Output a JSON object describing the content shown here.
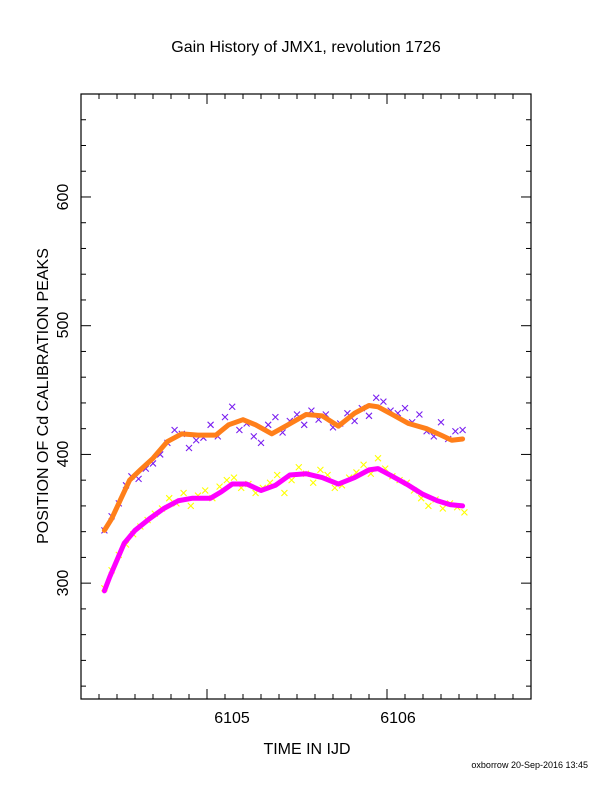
{
  "chart_data": {
    "type": "scatter",
    "title": "Gain History of JMX1, revolution 1726",
    "xlabel": "TIME IN IJD",
    "ylabel": "POSITION OF Cd CALIBRATION PEAKS",
    "footer": "oxborrow 20-Sep-2016 13:45",
    "xlim": [
      6104.3,
      6106.8
    ],
    "ylim": [
      210,
      680
    ],
    "x_major_ticks": [
      6105,
      6106
    ],
    "y_major_ticks": [
      300,
      400,
      500,
      600
    ],
    "x_tick_labels": [
      "6105",
      "6106"
    ],
    "y_tick_labels": [
      "300",
      "400",
      "500",
      "600"
    ],
    "grid": false,
    "colors": {
      "upper_points": "#7a1ff0",
      "upper_fit": "#ff7f1a",
      "lower_points": "#ffff00",
      "lower_fit": "#ff00ff"
    },
    "series": [
      {
        "marker": "x",
        "color": "#7a1ff0",
        "x": [
          6104.43,
          6104.47,
          6104.51,
          6104.55,
          6104.58,
          6104.62,
          6104.66,
          6104.7,
          6104.74,
          6104.78,
          6104.82,
          6104.86,
          6104.9,
          6104.94,
          6104.98,
          6105.02,
          6105.06,
          6105.1,
          6105.14,
          6105.18,
          6105.22,
          6105.26,
          6105.3,
          6105.34,
          6105.38,
          6105.42,
          6105.46,
          6105.5,
          6105.54,
          6105.58,
          6105.62,
          6105.66,
          6105.7,
          6105.74,
          6105.78,
          6105.82,
          6105.86,
          6105.9,
          6105.94,
          6105.98,
          6106.02,
          6106.06,
          6106.1,
          6106.14,
          6106.18,
          6106.22,
          6106.26,
          6106.3,
          6106.34,
          6106.38,
          6106.42
        ],
        "y": [
          341,
          352,
          362,
          376,
          383,
          381,
          389,
          393,
          400,
          409,
          419,
          416,
          405,
          411,
          413,
          423,
          414,
          429,
          437,
          419,
          424,
          414,
          409,
          423,
          429,
          417,
          426,
          431,
          423,
          434,
          427,
          431,
          421,
          424,
          432,
          426,
          436,
          430,
          444,
          441,
          434,
          432,
          436,
          425,
          431,
          418,
          414,
          425,
          412,
          418,
          419
        ]
      },
      {
        "marker": "line",
        "color": "#ff7f1a",
        "x": [
          6104.43,
          6104.47,
          6104.52,
          6104.57,
          6104.63,
          6104.7,
          6104.78,
          6104.86,
          6104.95,
          6105.05,
          6105.12,
          6105.2,
          6105.27,
          6105.36,
          6105.45,
          6105.55,
          6105.64,
          6105.73,
          6105.82,
          6105.9,
          6105.95,
          6106.03,
          6106.12,
          6106.22,
          6106.3,
          6106.36,
          6106.42
        ],
        "y": [
          341,
          350,
          365,
          380,
          388,
          397,
          410,
          416,
          415,
          415,
          423,
          427,
          423,
          416,
          423,
          431,
          430,
          422,
          432,
          438,
          437,
          431,
          424,
          420,
          415,
          411,
          412
        ]
      },
      {
        "marker": "x",
        "color": "#ffff00",
        "x": [
          6104.43,
          6104.47,
          6104.51,
          6104.55,
          6104.59,
          6104.63,
          6104.67,
          6104.71,
          6104.75,
          6104.79,
          6104.83,
          6104.87,
          6104.91,
          6104.95,
          6104.99,
          6105.03,
          6105.07,
          6105.11,
          6105.15,
          6105.19,
          6105.23,
          6105.27,
          6105.31,
          6105.35,
          6105.39,
          6105.43,
          6105.47,
          6105.51,
          6105.55,
          6105.59,
          6105.63,
          6105.67,
          6105.71,
          6105.75,
          6105.79,
          6105.83,
          6105.87,
          6105.91,
          6105.95,
          6105.99,
          6106.03,
          6106.07,
          6106.11,
          6106.15,
          6106.19,
          6106.23,
          6106.27,
          6106.31,
          6106.35,
          6106.39,
          6106.43
        ],
        "y": [
          296,
          310,
          322,
          330,
          338,
          344,
          349,
          354,
          358,
          366,
          362,
          370,
          360,
          368,
          372,
          366,
          375,
          380,
          382,
          374,
          377,
          370,
          374,
          378,
          384,
          370,
          380,
          390,
          385,
          378,
          388,
          384,
          374,
          376,
          382,
          386,
          392,
          385,
          397,
          389,
          383,
          380,
          378,
          372,
          366,
          360,
          365,
          358,
          362,
          359,
          355
        ]
      },
      {
        "marker": "line",
        "color": "#ff00ff",
        "x": [
          6104.43,
          6104.46,
          6104.5,
          6104.54,
          6104.6,
          6104.68,
          6104.76,
          6104.84,
          6104.92,
          6105.02,
          6105.08,
          6105.14,
          6105.22,
          6105.3,
          6105.38,
          6105.46,
          6105.55,
          6105.64,
          6105.73,
          6105.82,
          6105.9,
          6105.95,
          6106.03,
          6106.12,
          6106.2,
          6106.28,
          6106.35,
          6106.42
        ],
        "y": [
          294,
          305,
          318,
          331,
          341,
          350,
          358,
          364,
          366,
          366,
          371,
          377,
          377,
          372,
          376,
          384,
          385,
          382,
          377,
          382,
          388,
          389,
          383,
          376,
          369,
          364,
          361,
          360
        ]
      }
    ]
  }
}
